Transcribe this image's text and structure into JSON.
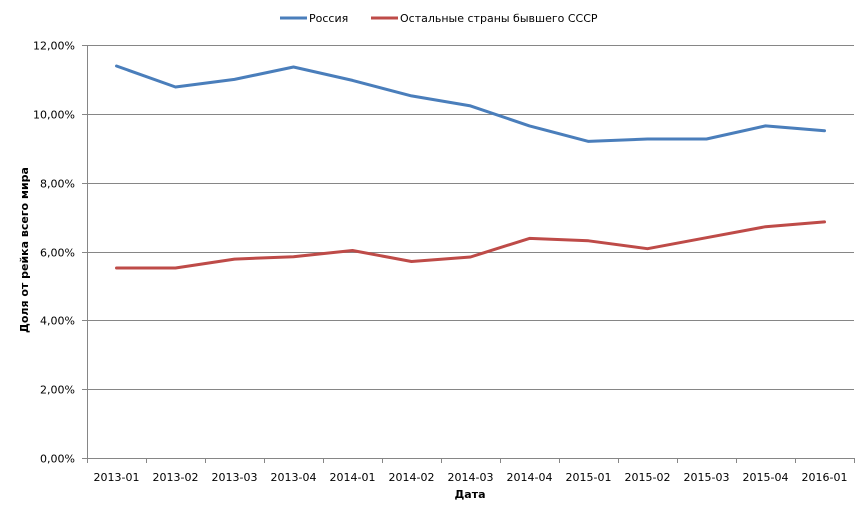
{
  "chart_data": {
    "type": "line",
    "title": "",
    "xlabel": "Дата",
    "ylabel": "Доля от рейка всего мира",
    "ylim": [
      0,
      12
    ],
    "y_ticks": [
      0,
      2,
      4,
      6,
      8,
      10,
      12
    ],
    "y_tick_labels": [
      "0,00%",
      "2,00%",
      "4,00%",
      "6,00%",
      "8,00%",
      "10,00%",
      "12,00%"
    ],
    "grid": true,
    "legend_position": "top",
    "categories": [
      "2013-01",
      "2013-02",
      "2013-03",
      "2013-04",
      "2014-01",
      "2014-02",
      "2014-03",
      "2014-04",
      "2015-01",
      "2015-02",
      "2015-03",
      "2015-04",
      "2016-01"
    ],
    "series": [
      {
        "name": "Россия",
        "color": "#4a7ebb",
        "values": [
          11.39,
          10.78,
          11.0,
          11.36,
          10.97,
          10.52,
          10.23,
          9.65,
          9.2,
          9.27,
          9.27,
          9.65,
          9.51
        ]
      },
      {
        "name": "Остальные страны бывшего СССР",
        "color": "#be4b48",
        "values": [
          5.52,
          5.52,
          5.78,
          5.85,
          6.03,
          5.71,
          5.84,
          6.38,
          6.31,
          6.08,
          6.4,
          6.72,
          6.86
        ]
      }
    ]
  }
}
